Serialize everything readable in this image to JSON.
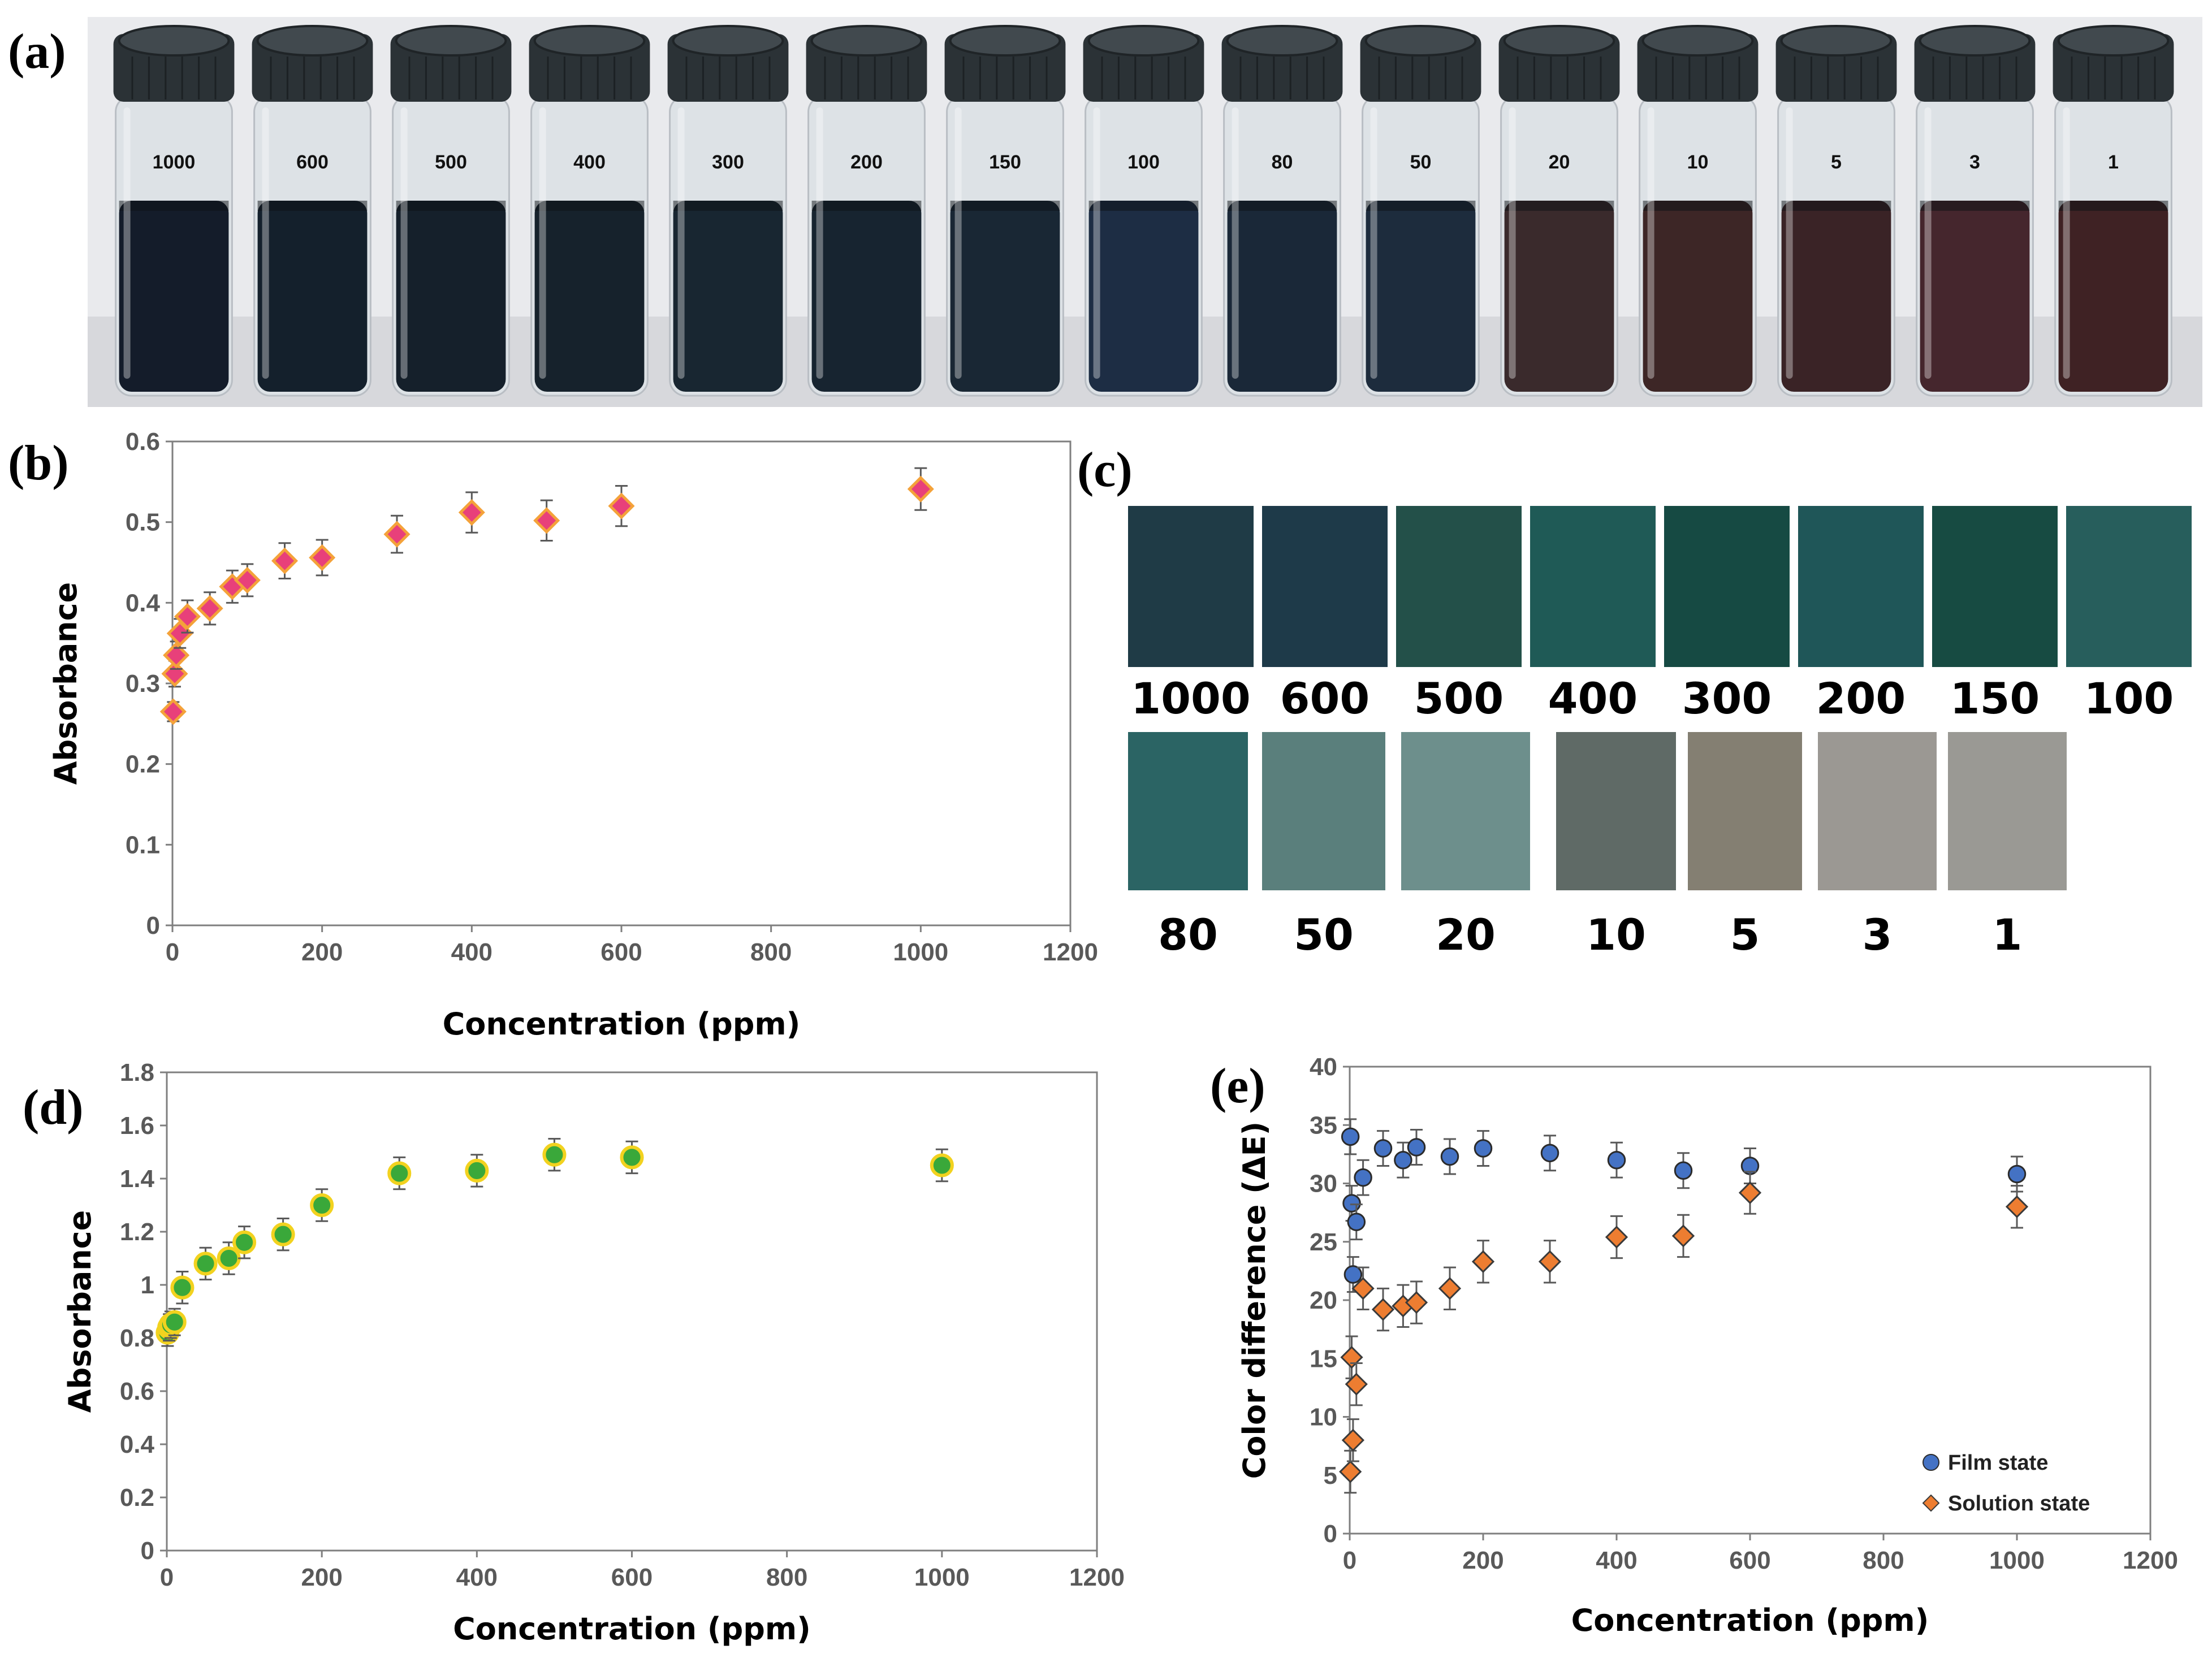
{
  "panels": {
    "a": {
      "label": "(a)"
    },
    "b": {
      "label": "(b)"
    },
    "c": {
      "label": "(c)"
    },
    "d": {
      "label": "(d)"
    },
    "e": {
      "label": "(e)"
    }
  },
  "photo_a": {
    "vials": [
      {
        "label": "1000",
        "color": "#141c2a"
      },
      {
        "label": "600",
        "color": "#14202c"
      },
      {
        "label": "500",
        "color": "#15202b"
      },
      {
        "label": "400",
        "color": "#16222c"
      },
      {
        "label": "300",
        "color": "#182631"
      },
      {
        "label": "200",
        "color": "#172430"
      },
      {
        "label": "150",
        "color": "#192734"
      },
      {
        "label": "100",
        "color": "#1d2d44"
      },
      {
        "label": "80",
        "color": "#1a2838"
      },
      {
        "label": "50",
        "color": "#1d2c3d"
      },
      {
        "label": "20",
        "color": "#3a2a2c"
      },
      {
        "label": "10",
        "color": "#3d2626"
      },
      {
        "label": "5",
        "color": "#3a2326"
      },
      {
        "label": "3",
        "color": "#45262d"
      },
      {
        "label": "1",
        "color": "#3f2224"
      }
    ]
  },
  "swatches_c": {
    "row1": [
      {
        "label": "1000",
        "color": "#1f3b46"
      },
      {
        "label": "600",
        "color": "#1e3a49"
      },
      {
        "label": "500",
        "color": "#235049"
      },
      {
        "label": "400",
        "color": "#1f5a56"
      },
      {
        "label": "300",
        "color": "#164a43"
      },
      {
        "label": "200",
        "color": "#1f5658"
      },
      {
        "label": "150",
        "color": "#174b42"
      },
      {
        "label": "100",
        "color": "#275e5c"
      }
    ],
    "row2": [
      {
        "label": "80",
        "color": "#2b6464"
      },
      {
        "label": "50",
        "color": "#5a7f7c"
      },
      {
        "label": "20",
        "color": "#6d8f8c"
      },
      {
        "label": "10",
        "color": "#5f6a66"
      },
      {
        "label": "5",
        "color": "#847f72"
      },
      {
        "label": "3",
        "color": "#9b9893"
      },
      {
        "label": "1",
        "color": "#9a9994"
      }
    ]
  },
  "chart_data": [
    {
      "panel": "b",
      "type": "scatter",
      "title": "",
      "xlabel": "Concentration (ppm)",
      "ylabel": "Absorbance",
      "xlim": [
        0,
        1200
      ],
      "ylim": [
        0,
        0.6
      ],
      "xticks": [
        "0",
        "200",
        "400",
        "600",
        "800",
        "1000",
        "1200"
      ],
      "yticks": [
        "0",
        "0.1",
        "0.2",
        "0.3",
        "0.4",
        "0.5",
        "0.6"
      ],
      "marker_color": "#e8407a",
      "marker_edge": "#f4a23a",
      "series": [
        {
          "name": "Absorbance",
          "x": [
            1,
            3,
            5,
            10,
            20,
            50,
            80,
            100,
            150,
            200,
            300,
            400,
            500,
            600,
            1000
          ],
          "y": [
            0.265,
            0.312,
            0.335,
            0.362,
            0.383,
            0.393,
            0.42,
            0.428,
            0.452,
            0.456,
            0.485,
            0.512,
            0.502,
            0.52,
            0.541
          ],
          "err": [
            0.012,
            0.016,
            0.017,
            0.018,
            0.02,
            0.02,
            0.02,
            0.02,
            0.022,
            0.022,
            0.023,
            0.025,
            0.025,
            0.025,
            0.026
          ]
        }
      ]
    },
    {
      "panel": "d",
      "type": "scatter",
      "title": "",
      "xlabel": "Concentration (ppm)",
      "ylabel": "Absorbance",
      "xlim": [
        0,
        1200
      ],
      "ylim": [
        0,
        1.8
      ],
      "xticks": [
        "0",
        "200",
        "400",
        "600",
        "800",
        "1000",
        "1200"
      ],
      "yticks": [
        "0",
        "0.2",
        "0.4",
        "0.6",
        "0.8",
        "1",
        "1.2",
        "1.4",
        "1.6",
        "1.8"
      ],
      "marker_color": "#3aa83a",
      "marker_edge": "#f2d21f",
      "series": [
        {
          "name": "Absorbance",
          "x": [
            1,
            3,
            5,
            10,
            20,
            50,
            80,
            100,
            150,
            200,
            300,
            400,
            500,
            600,
            1000
          ],
          "y": [
            0.82,
            0.84,
            0.85,
            0.86,
            0.99,
            1.08,
            1.1,
            1.16,
            1.19,
            1.3,
            1.42,
            1.43,
            1.49,
            1.48,
            1.45
          ],
          "err": [
            0.05,
            0.05,
            0.05,
            0.05,
            0.06,
            0.06,
            0.06,
            0.06,
            0.06,
            0.06,
            0.06,
            0.06,
            0.06,
            0.06,
            0.06
          ]
        }
      ]
    },
    {
      "panel": "e",
      "type": "scatter",
      "title": "",
      "xlabel": "Concentration (ppm)",
      "ylabel": "Color difference (ΔE)",
      "xlim": [
        0,
        1200
      ],
      "ylim": [
        0,
        40
      ],
      "xticks": [
        "0",
        "200",
        "400",
        "600",
        "800",
        "1000",
        "1200"
      ],
      "yticks": [
        "0",
        "5",
        "10",
        "15",
        "20",
        "25",
        "30",
        "35",
        "40"
      ],
      "legend_position": "bottom-right",
      "series": [
        {
          "name": "Film state",
          "marker": "circle",
          "color": "#4472c4",
          "x": [
            1,
            3,
            5,
            10,
            20,
            50,
            80,
            100,
            150,
            200,
            300,
            400,
            500,
            600,
            1000
          ],
          "y": [
            34.0,
            28.3,
            22.2,
            26.7,
            30.5,
            33.0,
            32.0,
            33.1,
            32.3,
            33.0,
            32.6,
            32.0,
            31.1,
            31.5,
            30.8
          ],
          "err": [
            1.5,
            1.5,
            1.5,
            1.5,
            1.5,
            1.5,
            1.5,
            1.5,
            1.5,
            1.5,
            1.5,
            1.5,
            1.5,
            1.5,
            1.5
          ]
        },
        {
          "name": "Solution state",
          "marker": "diamond",
          "color": "#ed7d31",
          "x": [
            1,
            3,
            5,
            10,
            20,
            50,
            80,
            100,
            150,
            200,
            300,
            400,
            500,
            600,
            1000
          ],
          "y": [
            5.3,
            15.1,
            8.0,
            12.8,
            21.0,
            19.2,
            19.5,
            19.8,
            21.0,
            23.3,
            23.3,
            25.4,
            25.5,
            29.2,
            28.0
          ],
          "err": [
            1.8,
            1.8,
            1.8,
            1.8,
            1.8,
            1.8,
            1.8,
            1.8,
            1.8,
            1.8,
            1.8,
            1.8,
            1.8,
            1.8,
            1.8
          ]
        }
      ]
    }
  ]
}
